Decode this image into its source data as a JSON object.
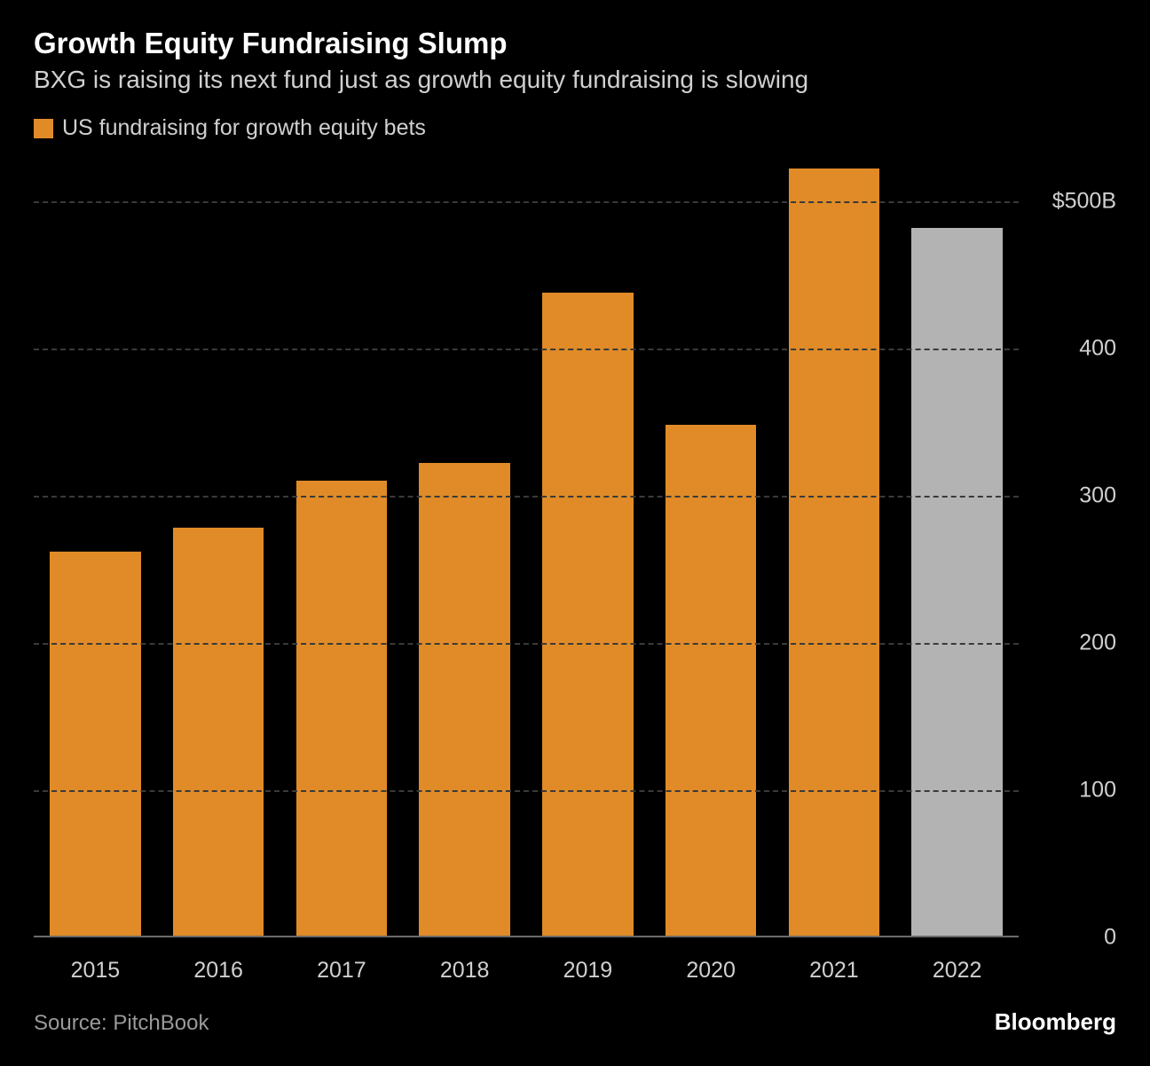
{
  "title": "Growth Equity Fundraising Slump",
  "subtitle": "BXG is raising its next fund just as growth equity fundraising is slowing",
  "legend": {
    "label": "US fundraising for growth equity bets",
    "swatch_color": "#e08b27"
  },
  "chart": {
    "type": "bar",
    "background_color": "#000000",
    "grid_color": "#3a3a3a",
    "baseline_color": "#6a6a6a",
    "text_color": "#d0d0d0",
    "y": {
      "min": 0,
      "max": 530,
      "ticks": [
        {
          "value": 0,
          "label": "0"
        },
        {
          "value": 100,
          "label": "100"
        },
        {
          "value": 200,
          "label": "200"
        },
        {
          "value": 300,
          "label": "300"
        },
        {
          "value": 400,
          "label": "400"
        },
        {
          "value": 500,
          "label": "$500B"
        }
      ]
    },
    "categories": [
      "2015",
      "2016",
      "2017",
      "2018",
      "2019",
      "2020",
      "2021",
      "2022"
    ],
    "values": [
      262,
      278,
      310,
      322,
      438,
      348,
      522,
      482
    ],
    "bar_colors": [
      "#e08b27",
      "#e08b27",
      "#e08b27",
      "#e08b27",
      "#e08b27",
      "#e08b27",
      "#e08b27",
      "#b3b3b3"
    ],
    "bar_width_ratio": 0.74
  },
  "source": "Source: PitchBook",
  "brand": "Bloomberg"
}
